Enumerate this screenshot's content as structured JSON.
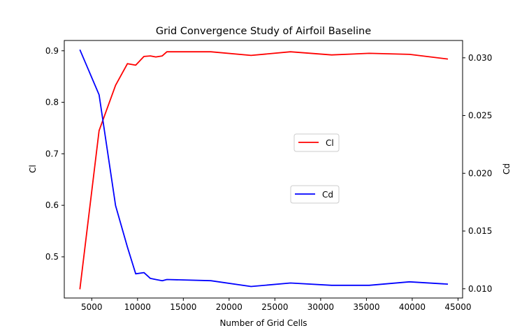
{
  "chart_data": {
    "type": "line",
    "title": "Grid Convergence Study of Airfoil Baseline",
    "xlabel": "Number of Grid Cells",
    "ylabel_left": "Cl",
    "ylabel_right": "Cd",
    "xlim": [
      2000,
      45500
    ],
    "ylim_left": [
      0.42,
      0.92
    ],
    "ylim_right": [
      0.0092,
      0.0315
    ],
    "x_ticks": [
      5000,
      10000,
      15000,
      20000,
      25000,
      30000,
      35000,
      40000,
      45000
    ],
    "y_left_ticks": [
      0.5,
      0.6,
      0.7,
      0.8,
      0.9
    ],
    "y_right_ticks": [
      0.01,
      0.015,
      0.02,
      0.025,
      0.03
    ],
    "x_tick_labels": [
      "5000",
      "10000",
      "15000",
      "20000",
      "25000",
      "30000",
      "35000",
      "40000",
      "45000"
    ],
    "y_left_tick_labels": [
      "0.5",
      "0.6",
      "0.7",
      "0.8",
      "0.9"
    ],
    "y_right_tick_labels": [
      "0.010",
      "0.015",
      "0.020",
      "0.025",
      "0.030"
    ],
    "grid": false,
    "series": [
      {
        "name": "Cl",
        "axis": "left",
        "color": "#ff0000",
        "x": [
          3700,
          5800,
          7600,
          8900,
          9800,
          10700,
          11400,
          12000,
          12700,
          13200,
          18000,
          22400,
          26700,
          31200,
          35300,
          39700,
          43900
        ],
        "y": [
          0.437,
          0.745,
          0.833,
          0.875,
          0.872,
          0.889,
          0.89,
          0.888,
          0.89,
          0.898,
          0.898,
          0.891,
          0.898,
          0.892,
          0.895,
          0.893,
          0.884
        ]
      },
      {
        "name": "Cd",
        "axis": "right",
        "color": "#0000ff",
        "x": [
          3700,
          5800,
          7600,
          8900,
          9800,
          10700,
          11400,
          12000,
          12700,
          13200,
          18000,
          22400,
          26700,
          31200,
          35300,
          39700,
          43900
        ],
        "y": [
          0.0307,
          0.0268,
          0.0172,
          0.0136,
          0.0113,
          0.0114,
          0.0109,
          0.0108,
          0.0107,
          0.0108,
          0.0107,
          0.0102,
          0.0105,
          0.0103,
          0.0103,
          0.0106,
          0.0104
        ]
      }
    ],
    "legends": [
      {
        "series": "Cl",
        "placement": "center-right upper"
      },
      {
        "series": "Cd",
        "placement": "center-right lower"
      }
    ]
  }
}
